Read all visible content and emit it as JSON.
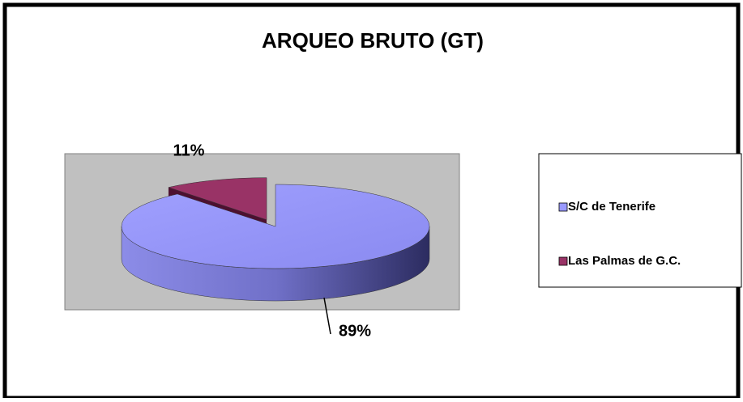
{
  "chart_data": {
    "type": "pie",
    "title": "ARQUEO BRUTO (GT)",
    "categories": [
      "S/C de Tenerife",
      "Las Palmas de G.C."
    ],
    "values": [
      89,
      11
    ],
    "value_labels": [
      "89%",
      "11%"
    ],
    "colors": [
      "#9999ff",
      "#993366"
    ],
    "legend": "right"
  }
}
